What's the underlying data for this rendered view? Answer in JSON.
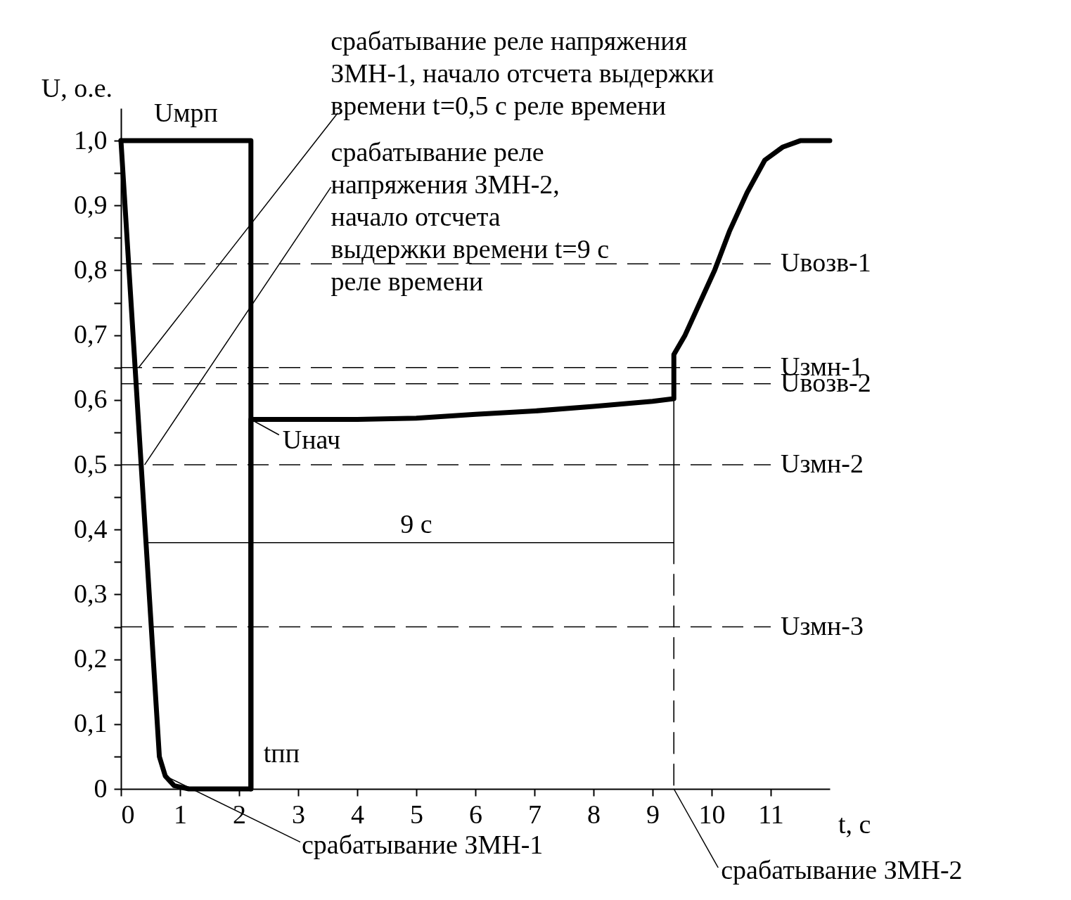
{
  "chart_data": {
    "type": "line",
    "xlabel": "t, с",
    "ylabel": "U, о.е.",
    "xlim": [
      0,
      12
    ],
    "ylim": [
      0,
      1.05
    ],
    "xticks": [
      0,
      1,
      2,
      3,
      4,
      5,
      6,
      7,
      8,
      9,
      10,
      11
    ],
    "yticks": [
      0,
      {
        "value": 0.05,
        "label": null
      },
      {
        "value": 0.1,
        "label": "0,1"
      },
      {
        "value": 0.15,
        "label": null
      },
      {
        "value": 0.2,
        "label": "0,2"
      },
      {
        "value": 0.25,
        "label": null
      },
      {
        "value": 0.3,
        "label": "0,3"
      },
      {
        "value": 0.35,
        "label": null
      },
      {
        "value": 0.4,
        "label": "0,4"
      },
      {
        "value": 0.45,
        "label": null
      },
      {
        "value": 0.5,
        "label": "0,5"
      },
      {
        "value": 0.55,
        "label": null
      },
      {
        "value": 0.6,
        "label": "0,6"
      },
      {
        "value": 0.65,
        "label": null
      },
      {
        "value": 0.7,
        "label": "0,7"
      },
      {
        "value": 0.75,
        "label": null
      },
      {
        "value": 0.8,
        "label": "0,8"
      },
      {
        "value": 0.85,
        "label": null
      },
      {
        "value": 0.9,
        "label": "0,9"
      },
      {
        "value": 0.95,
        "label": null
      },
      {
        "value": 1.0,
        "label": "1,0"
      }
    ],
    "grid": false,
    "marker": "none",
    "series": [
      {
        "name": "Uмрп",
        "color": "#000000",
        "x": [
          0,
          2.2,
          2.2
        ],
        "values": [
          1.0,
          1.0,
          0
        ]
      },
      {
        "color": "#000000",
        "x": [
          0,
          0.65,
          0.75,
          0.9,
          1.15,
          2.2,
          2.2,
          4,
          5,
          6,
          7,
          8,
          9,
          9.36,
          9.36,
          9.55,
          9.8,
          10.05,
          10.3,
          10.6,
          10.9,
          11.2,
          11.5,
          12
        ],
        "values": [
          1.0,
          0.05,
          0.02,
          0.005,
          0,
          0,
          0.57,
          0.57,
          0.572,
          0.578,
          0.583,
          0.59,
          0.598,
          0.602,
          0.67,
          0.7,
          0.75,
          0.8,
          0.86,
          0.92,
          0.97,
          0.99,
          1.0,
          1.0
        ]
      },
      {
        "color": "#000000",
        "x": [
          0.4,
          9.36
        ],
        "values": [
          0.38,
          0.38
        ]
      },
      {
        "color": "#000000",
        "x": [
          9.36,
          9.36
        ],
        "values": [
          0.6,
          0.38
        ]
      },
      {
        "color": "#000000",
        "x": [
          9.36,
          9.36
        ],
        "values": [
          0.38,
          0
        ],
        "line_style": "dashed"
      }
    ],
    "ref_lines": [
      {
        "axis": "y",
        "value": 0.81,
        "label": "Uвозв-1",
        "line_style": "dashed"
      },
      {
        "axis": "y",
        "value": 0.65,
        "label": "Uзмн-1",
        "line_style": "dashed"
      },
      {
        "axis": "y",
        "value": 0.625,
        "label": "Uвозв-2",
        "line_style": "dashed"
      },
      {
        "axis": "y",
        "value": 0.5,
        "label": "Uзмн-2",
        "line_style": "dashed"
      },
      {
        "axis": "y",
        "value": 0.25,
        "label": "Uзмн-3",
        "line_style": "dashed"
      }
    ],
    "annotations": [
      {
        "text": "tпп",
        "x": 2.2,
        "y": 0
      },
      {
        "text": "Uнач",
        "x": 2.2,
        "y": 0.57
      },
      {
        "text": "9 с",
        "x": 5,
        "y": 0.38
      },
      {
        "text": "срабатывание реле напряжения\nЗМН-1, начало отсчета выдержки\nвремени t=0,5 с реле времени",
        "x": 0.3,
        "y": 0.65
      },
      {
        "text": "срабатывание реле\nнапряжения ЗМН-2,\nначало отсчета\nвыдержки времени  t=9 с\nреле времени",
        "x": 0.4,
        "y": 0.5
      },
      {
        "text": "срабатывание ЗМН-1",
        "x": 0.75,
        "y": 0.02
      },
      {
        "text": "срабатывание ЗМН-2",
        "x": 9.36,
        "y": 0
      }
    ]
  }
}
